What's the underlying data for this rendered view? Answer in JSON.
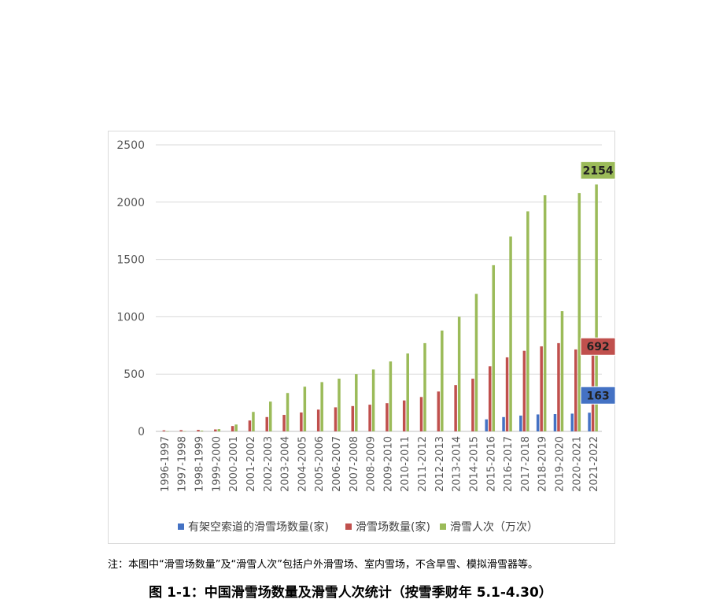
{
  "chart_data": {
    "type": "bar",
    "categories": [
      "1996-1997",
      "1997-1998",
      "1998-1999",
      "1999-2000",
      "2000-2001",
      "2001-2002",
      "2002-2003",
      "2003-2004",
      "2004-2005",
      "2005-2006",
      "2006-2007",
      "2007-2008",
      "2008-2009",
      "2009-2010",
      "2010-2011",
      "2011-2012",
      "2012-2013",
      "2013-2014",
      "2014-2015",
      "2015-2016",
      "2016-2017",
      "2017-2018",
      "2018-2019",
      "2019-2020",
      "2020-2021",
      "2021-2022"
    ],
    "series": [
      {
        "name": "有架空索道的滑雪场数量(家)",
        "color": "#4472c4",
        "values": [
          null,
          null,
          null,
          null,
          null,
          null,
          null,
          null,
          null,
          null,
          null,
          null,
          null,
          null,
          null,
          null,
          null,
          null,
          null,
          105,
          125,
          138,
          148,
          151,
          155,
          163
        ]
      },
      {
        "name": "滑雪场数量(家)",
        "color": "#c0504d",
        "values": [
          9,
          11,
          13,
          17,
          47,
          95,
          125,
          144,
          165,
          190,
          210,
          221,
          233,
          246,
          270,
          300,
          348,
          404,
          460,
          568,
          646,
          703,
          742,
          770,
          715,
          692
        ]
      },
      {
        "name": "滑雪人次（万次）",
        "color": "#9bbb59",
        "values": [
          1,
          2,
          7,
          20,
          60,
          170,
          260,
          335,
          390,
          430,
          460,
          500,
          540,
          610,
          680,
          770,
          880,
          1000,
          1200,
          1450,
          1700,
          1920,
          2060,
          1050,
          2080,
          2154
        ]
      }
    ],
    "ylim": [
      0,
      2500
    ],
    "yticks": [
      "0",
      "500",
      "1000",
      "1500",
      "2000",
      "2500"
    ],
    "grid": true,
    "legend_position": "bottom",
    "data_labels": [
      {
        "series": 2,
        "index": 25,
        "text": "2154"
      },
      {
        "series": 1,
        "index": 25,
        "text": "692"
      },
      {
        "series": 0,
        "index": 25,
        "text": "163"
      }
    ]
  },
  "note": "注：本图中“滑雪场数量”及“滑雪人次”包括户外滑雪场、室内雪场，不含旱雪、模拟滑雪器等。",
  "caption": "图 1-1：中国滑雪场数量及滑雪人次统计（按雪季财年 5.1-4.30）"
}
